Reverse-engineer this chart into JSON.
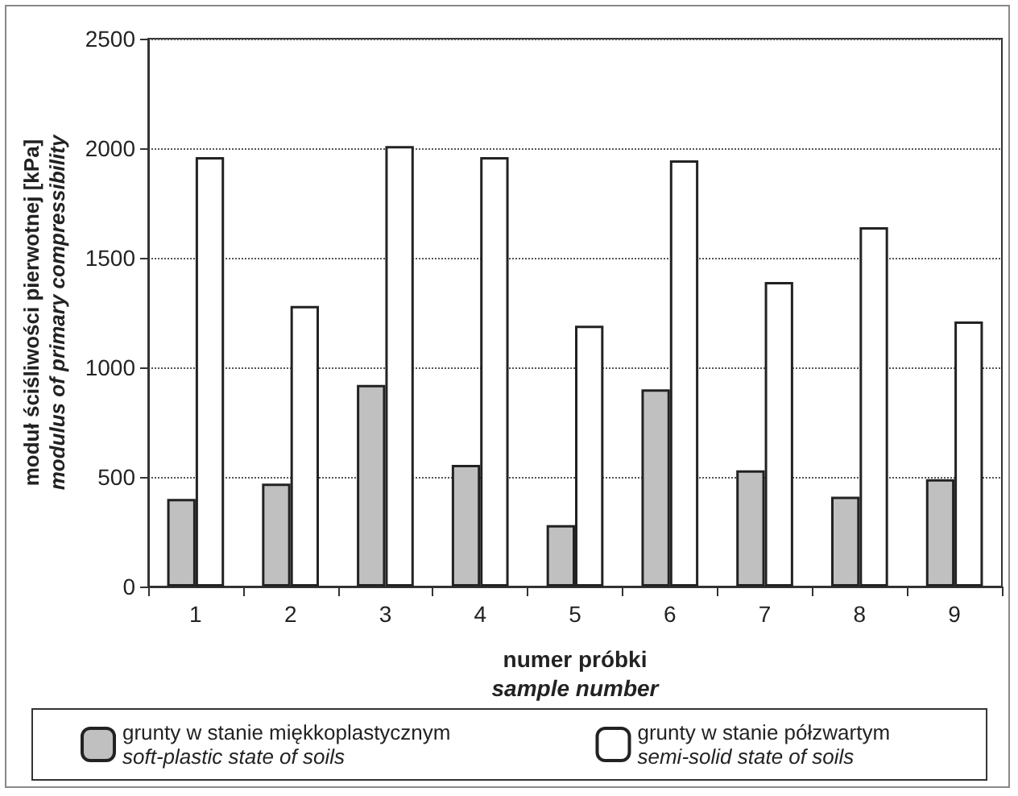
{
  "chart_data": {
    "type": "bar",
    "xlabel": "numer próbki\nsample number",
    "ylabel": "moduł ściśliwości pierwotnej [kPa]\nmodulus of primary compressibility",
    "categories": [
      "1",
      "2",
      "3",
      "4",
      "5",
      "6",
      "7",
      "8",
      "9"
    ],
    "series": [
      {
        "name": "grunty w stanie miękkoplastycznym\nsoft-plastic state of soils",
        "color": "#c0c0c0",
        "values": [
          400,
          470,
          920,
          555,
          280,
          900,
          530,
          410,
          490
        ]
      },
      {
        "name": "grunty w stanie półzwartym\nsemi-solid state of soils",
        "color": "#ffffff",
        "values": [
          1960,
          1280,
          2010,
          1960,
          1190,
          1945,
          1390,
          1640,
          1210
        ]
      }
    ],
    "ylim": [
      0,
      2500
    ],
    "yticks": [
      0,
      500,
      1000,
      1500,
      2000,
      2500
    ],
    "grid": "y",
    "legend": "bottom"
  }
}
